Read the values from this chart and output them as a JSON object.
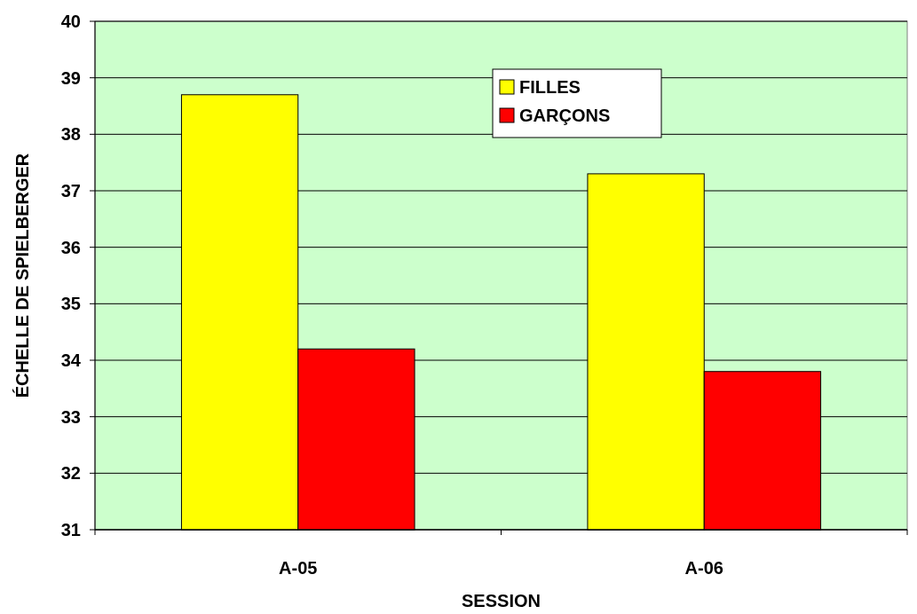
{
  "chart_data": {
    "type": "bar",
    "xlabel": "SESSION",
    "ylabel": "ÉCHELLE DE SPIELBERGER",
    "categories": [
      "A-05",
      "A-06"
    ],
    "series": [
      {
        "name": "FILLES",
        "color": "#ffff00",
        "values": [
          38.7,
          37.3
        ]
      },
      {
        "name": "GARÇONS",
        "color": "#ff0000",
        "values": [
          34.2,
          33.8
        ]
      }
    ],
    "ylim": [
      31,
      40
    ],
    "yticks": [
      31,
      32,
      33,
      34,
      35,
      36,
      37,
      38,
      39,
      40
    ],
    "grid": "y",
    "legend": "top"
  }
}
